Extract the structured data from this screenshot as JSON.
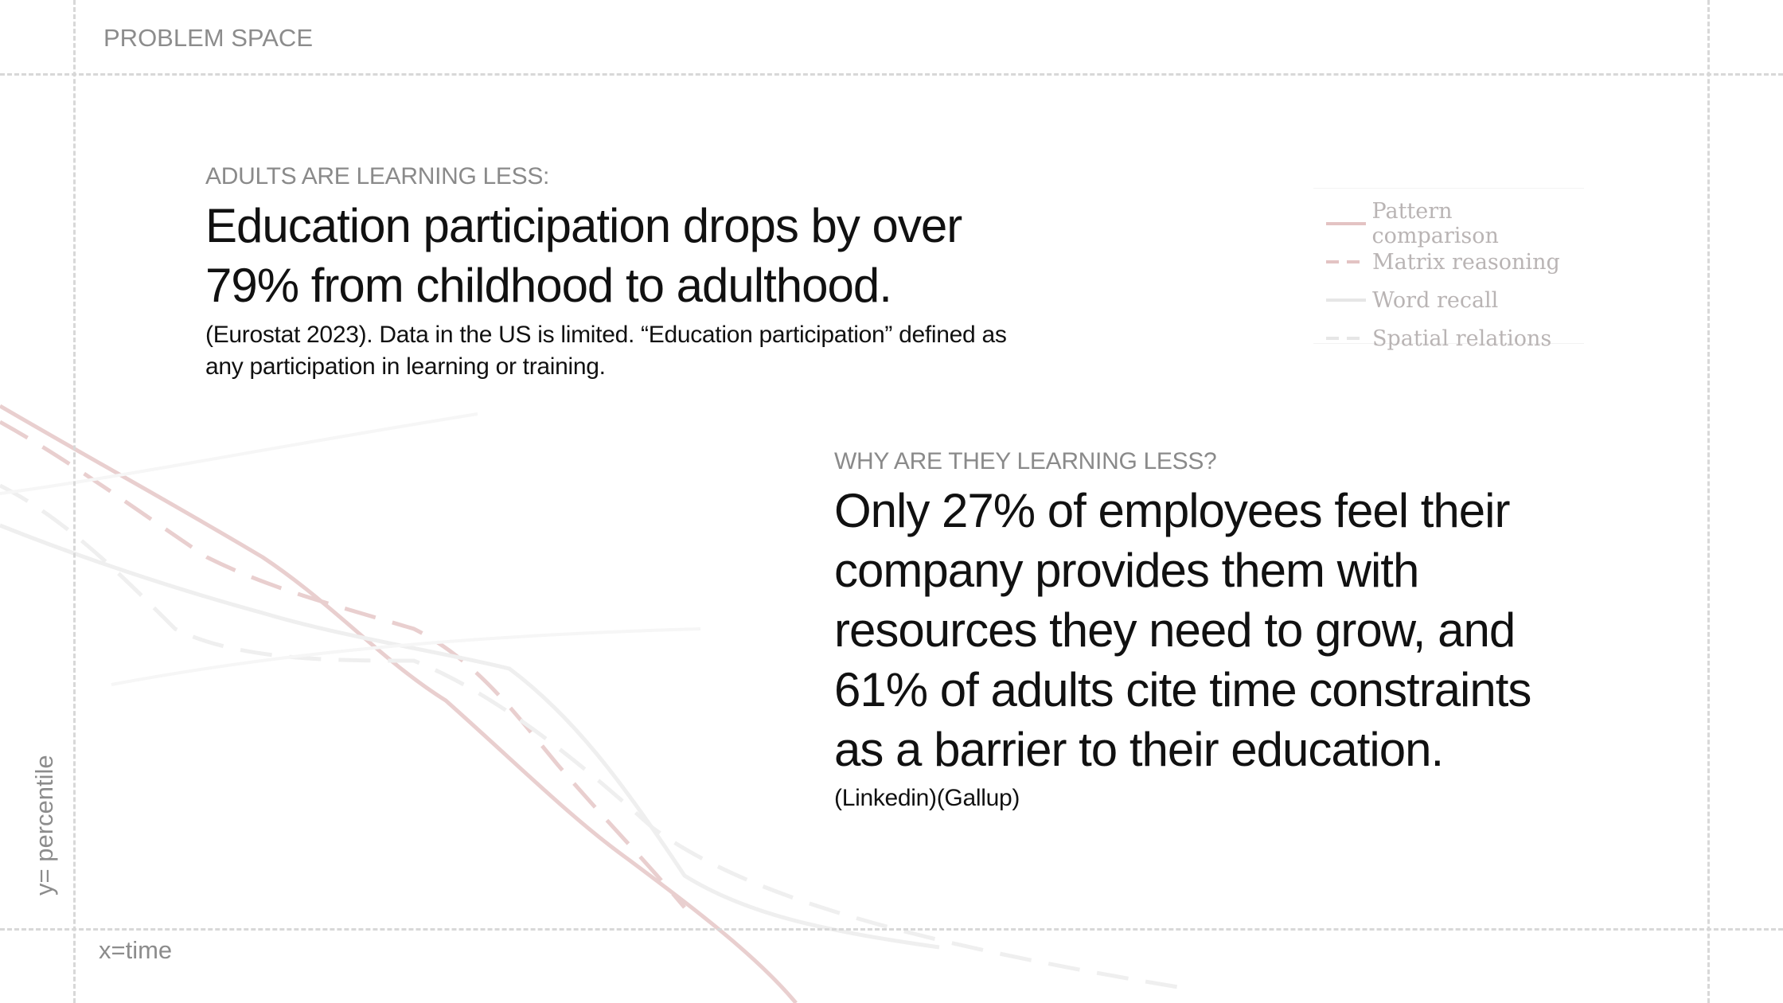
{
  "section_label": "PROBLEM SPACE",
  "block1": {
    "eyebrow": "ADULTS ARE LEARNING LESS:",
    "headline_line1": "Education participation drops by over",
    "headline_line2": "79% from childhood to adulthood.",
    "source_line1": "(Eurostat 2023). Data in the US is limited. “Education participation” defined as",
    "source_line2": "any participation in learning or training."
  },
  "block2": {
    "eyebrow": "WHY ARE THEY LEARNING LESS?",
    "headline_lines": [
      "Only 27% of employees feel their",
      "company provides them with",
      "resources they need to grow, and",
      "61% of adults cite time constraints",
      "as a barrier to their education."
    ],
    "source": "(Linkedin)(Gallup)"
  },
  "legend": {
    "items": [
      {
        "label": "Pattern comparison",
        "style": "solid",
        "color": "#e3c3c3"
      },
      {
        "label": "Matrix reasoning",
        "style": "dashed",
        "color": "#e3c3c3"
      },
      {
        "label": "Word recall",
        "style": "solid",
        "color": "#e8e8e8"
      },
      {
        "label": "Spatial relations",
        "style": "dashed",
        "color": "#e8e8e8"
      }
    ]
  },
  "axes": {
    "y_label": "y= percentile",
    "x_label": "x=time"
  },
  "colors": {
    "accent_line": "#e3c3c3",
    "grey_line": "#e8e8e8",
    "frame": "#d8d8d8",
    "muted_text": "#8c8c8c"
  }
}
